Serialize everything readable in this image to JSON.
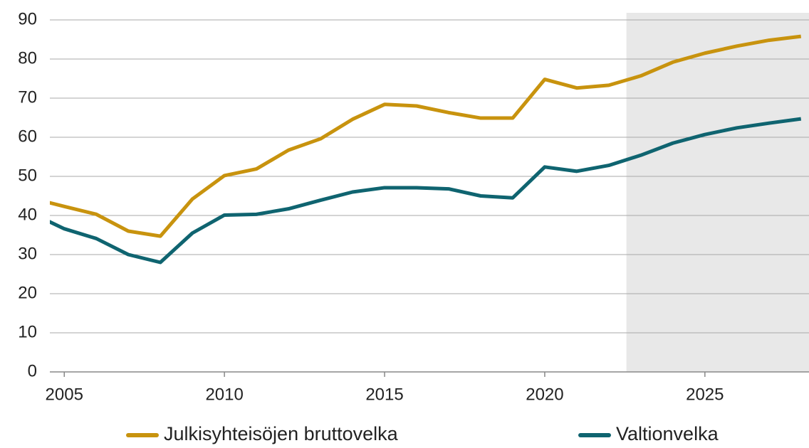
{
  "chart_data": {
    "type": "line",
    "x": [
      2004,
      2005,
      2006,
      2007,
      2008,
      2009,
      2010,
      2011,
      2012,
      2013,
      2014,
      2015,
      2016,
      2017,
      2018,
      2019,
      2020,
      2021,
      2022,
      2023,
      2024,
      2025,
      2026,
      2027,
      2028
    ],
    "series": [
      {
        "name": "Julkisyhteisöjen bruttovelka",
        "color": "#c8930e",
        "values": [
          44.4,
          42.3,
          40.3,
          36.0,
          34.7,
          44.2,
          50.2,
          51.9,
          56.7,
          59.6,
          64.6,
          68.4,
          68.0,
          66.3,
          64.9,
          64.9,
          74.8,
          72.6,
          73.3,
          75.7,
          79.2,
          81.5,
          83.3,
          84.8,
          85.8
        ]
      },
      {
        "name": "Valtionvelka",
        "color": "#0f6470",
        "values": [
          40.5,
          36.6,
          34.1,
          30.0,
          28.0,
          35.5,
          40.1,
          40.3,
          41.7,
          43.9,
          46.0,
          47.1,
          47.1,
          46.8,
          45.0,
          44.5,
          52.4,
          51.3,
          52.8,
          55.4,
          58.5,
          60.7,
          62.4,
          63.6,
          64.7
        ]
      }
    ],
    "xlim": [
      2004.55,
      2028.25
    ],
    "xticks": [
      2005,
      2010,
      2015,
      2020,
      2025
    ],
    "ylim": [
      0,
      90
    ],
    "yticks": [
      0,
      10,
      20,
      30,
      40,
      50,
      60,
      70,
      80,
      90
    ],
    "grid": true,
    "shaded_from": 2022.55,
    "legend": "bottom"
  }
}
